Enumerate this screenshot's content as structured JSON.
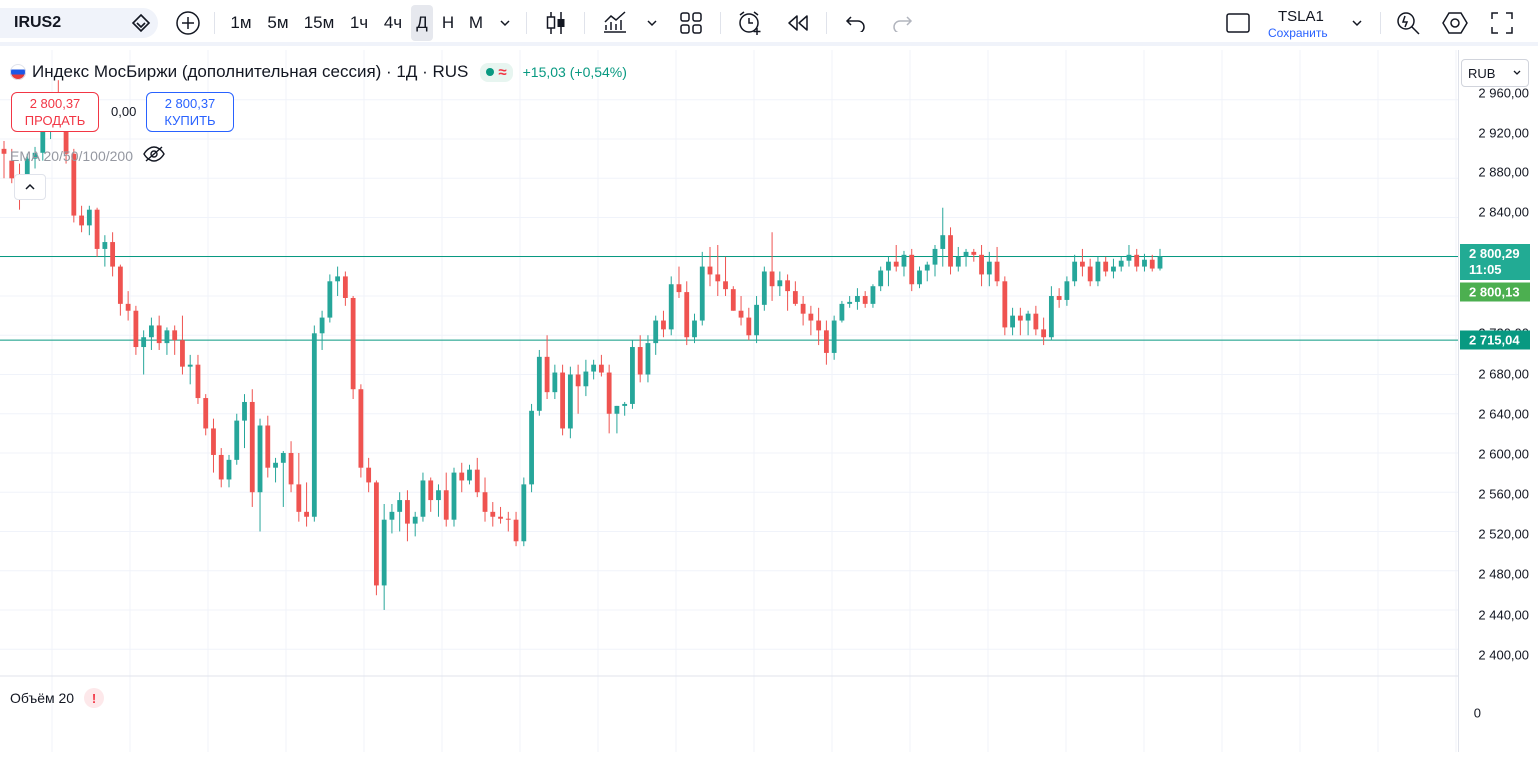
{
  "toolbar": {
    "symbol": "IRUS2",
    "timeframes": [
      "1м",
      "5м",
      "15м",
      "1ч",
      "4ч",
      "Д",
      "Н",
      "М"
    ],
    "active_timeframe_index": 5,
    "account_name": "TSLA1",
    "save_label": "Сохранить",
    "icons": [
      "plus-icon",
      "candles-icon",
      "indicators-icon",
      "templates-icon",
      "alert-icon",
      "replay-icon",
      "undo-icon",
      "redo-icon",
      "layout-icon",
      "quick-search-icon",
      "settings-icon",
      "fullscreen-icon"
    ]
  },
  "legend": {
    "title": "Индекс МосБиржи (дополнительная сессия) · 1Д · RUS",
    "status_symbol": "≈",
    "change": "+15,03 (+0,54%)",
    "sell_price": "2 800,37",
    "sell_label": "ПРОДАТЬ",
    "spread": "0,00",
    "buy_price": "2 800,37",
    "buy_label": "КУПИТЬ",
    "ema": "EMA 20/50/100/200",
    "volume": "Объём 20",
    "volume_warning": "!"
  },
  "price_axis": {
    "currency": "RUB",
    "labels": [
      "2 960,00",
      "2 920,00",
      "2 880,00",
      "2 840,00",
      "2 720,00",
      "2 680,00",
      "2 640,00",
      "2 600,00",
      "2 560,00",
      "2 520,00",
      "2 480,00",
      "2 440,00",
      "2 400,00"
    ],
    "volume_zero": "0",
    "last_price": "2 800,29",
    "countdown": "11:05",
    "prev_close": "2 800,13",
    "level_price": "2 715,04"
  },
  "colors": {
    "up": "#26a69a",
    "down": "#ef5350",
    "grid": "#f0f3fa",
    "level": "#089981",
    "last_tag": "#22ab94",
    "prev_tag": "#4caf50"
  },
  "chart_data": {
    "type": "candlestick",
    "timeframe": "1Д",
    "y_range": [
      2390,
      2970
    ],
    "horizontal_lines": [
      2800.29,
      2715.04
    ],
    "candles": [
      [
        2910,
        2918,
        2880,
        2905
      ],
      [
        2898,
        2910,
        2875,
        2880
      ],
      [
        2880,
        2895,
        2848,
        2872
      ],
      [
        2872,
        2905,
        2868,
        2900
      ],
      [
        2900,
        2912,
        2890,
        2906
      ],
      [
        2906,
        2940,
        2898,
        2930
      ],
      [
        2930,
        2960,
        2920,
        2950
      ],
      [
        2950,
        2980,
        2930,
        2945
      ],
      [
        2945,
        2962,
        2895,
        2905
      ],
      [
        2905,
        2910,
        2835,
        2842
      ],
      [
        2842,
        2852,
        2825,
        2832
      ],
      [
        2832,
        2852,
        2822,
        2848
      ],
      [
        2848,
        2850,
        2800,
        2808
      ],
      [
        2808,
        2822,
        2790,
        2815
      ],
      [
        2815,
        2825,
        2780,
        2790
      ],
      [
        2790,
        2792,
        2740,
        2752
      ],
      [
        2752,
        2765,
        2735,
        2745
      ],
      [
        2745,
        2750,
        2700,
        2708
      ],
      [
        2708,
        2725,
        2680,
        2718
      ],
      [
        2718,
        2738,
        2705,
        2730
      ],
      [
        2730,
        2740,
        2705,
        2712
      ],
      [
        2712,
        2728,
        2700,
        2725
      ],
      [
        2725,
        2730,
        2700,
        2715
      ],
      [
        2715,
        2740,
        2680,
        2688
      ],
      [
        2688,
        2700,
        2670,
        2690
      ],
      [
        2690,
        2700,
        2650,
        2656
      ],
      [
        2656,
        2660,
        2618,
        2625
      ],
      [
        2625,
        2635,
        2580,
        2598
      ],
      [
        2598,
        2605,
        2565,
        2573
      ],
      [
        2573,
        2598,
        2565,
        2593
      ],
      [
        2593,
        2640,
        2588,
        2633
      ],
      [
        2633,
        2660,
        2605,
        2652
      ],
      [
        2652,
        2665,
        2545,
        2560
      ],
      [
        2560,
        2635,
        2520,
        2628
      ],
      [
        2628,
        2638,
        2575,
        2585
      ],
      [
        2585,
        2595,
        2570,
        2590
      ],
      [
        2590,
        2602,
        2545,
        2600
      ],
      [
        2600,
        2612,
        2560,
        2568
      ],
      [
        2568,
        2600,
        2530,
        2540
      ],
      [
        2540,
        2570,
        2525,
        2535
      ],
      [
        2535,
        2730,
        2530,
        2722
      ],
      [
        2722,
        2745,
        2705,
        2738
      ],
      [
        2738,
        2782,
        2733,
        2775
      ],
      [
        2775,
        2790,
        2760,
        2780
      ],
      [
        2780,
        2785,
        2750,
        2758
      ],
      [
        2758,
        2760,
        2655,
        2665
      ],
      [
        2665,
        2670,
        2575,
        2585
      ],
      [
        2585,
        2595,
        2560,
        2570
      ],
      [
        2570,
        2572,
        2455,
        2465
      ],
      [
        2465,
        2548,
        2440,
        2532
      ],
      [
        2532,
        2548,
        2518,
        2540
      ],
      [
        2540,
        2560,
        2520,
        2552
      ],
      [
        2552,
        2562,
        2510,
        2528
      ],
      [
        2528,
        2540,
        2515,
        2535
      ],
      [
        2535,
        2580,
        2530,
        2572
      ],
      [
        2572,
        2575,
        2540,
        2552
      ],
      [
        2552,
        2568,
        2535,
        2562
      ],
      [
        2562,
        2580,
        2525,
        2532
      ],
      [
        2532,
        2585,
        2525,
        2580
      ],
      [
        2580,
        2590,
        2560,
        2572
      ],
      [
        2572,
        2588,
        2568,
        2583
      ],
      [
        2583,
        2595,
        2555,
        2560
      ],
      [
        2560,
        2575,
        2530,
        2540
      ],
      [
        2540,
        2550,
        2525,
        2535
      ],
      [
        2535,
        2545,
        2528,
        2533
      ],
      [
        2533,
        2540,
        2520,
        2532
      ],
      [
        2532,
        2540,
        2505,
        2510
      ],
      [
        2510,
        2575,
        2505,
        2568
      ],
      [
        2568,
        2650,
        2560,
        2643
      ],
      [
        2643,
        2705,
        2638,
        2698
      ],
      [
        2698,
        2720,
        2655,
        2662
      ],
      [
        2662,
        2690,
        2655,
        2682
      ],
      [
        2682,
        2690,
        2618,
        2625
      ],
      [
        2625,
        2688,
        2615,
        2680
      ],
      [
        2680,
        2690,
        2640,
        2668
      ],
      [
        2668,
        2695,
        2658,
        2683
      ],
      [
        2683,
        2695,
        2675,
        2690
      ],
      [
        2690,
        2700,
        2678,
        2682
      ],
      [
        2682,
        2690,
        2620,
        2640
      ],
      [
        2640,
        2648,
        2620,
        2648
      ],
      [
        2648,
        2652,
        2638,
        2650
      ],
      [
        2650,
        2715,
        2645,
        2708
      ],
      [
        2708,
        2720,
        2672,
        2680
      ],
      [
        2680,
        2720,
        2672,
        2712
      ],
      [
        2712,
        2740,
        2700,
        2735
      ],
      [
        2735,
        2745,
        2718,
        2726
      ],
      [
        2726,
        2780,
        2720,
        2772
      ],
      [
        2772,
        2790,
        2758,
        2764
      ],
      [
        2764,
        2775,
        2710,
        2718
      ],
      [
        2718,
        2742,
        2712,
        2735
      ],
      [
        2735,
        2805,
        2730,
        2790
      ],
      [
        2790,
        2810,
        2770,
        2782
      ],
      [
        2782,
        2812,
        2760,
        2775
      ],
      [
        2775,
        2800,
        2760,
        2767
      ],
      [
        2767,
        2770,
        2745,
        2745
      ],
      [
        2745,
        2760,
        2730,
        2738
      ],
      [
        2738,
        2748,
        2715,
        2720
      ],
      [
        2720,
        2760,
        2712,
        2751
      ],
      [
        2751,
        2790,
        2745,
        2785
      ],
      [
        2785,
        2825,
        2755,
        2770
      ],
      [
        2770,
        2785,
        2760,
        2776
      ],
      [
        2776,
        2782,
        2745,
        2765
      ],
      [
        2765,
        2775,
        2750,
        2752
      ],
      [
        2752,
        2760,
        2730,
        2742
      ],
      [
        2742,
        2750,
        2720,
        2735
      ],
      [
        2735,
        2748,
        2710,
        2725
      ],
      [
        2725,
        2735,
        2690,
        2702
      ],
      [
        2702,
        2740,
        2695,
        2735
      ],
      [
        2735,
        2755,
        2733,
        2752
      ],
      [
        2752,
        2760,
        2748,
        2754
      ],
      [
        2754,
        2768,
        2746,
        2760
      ],
      [
        2760,
        2765,
        2748,
        2752
      ],
      [
        2752,
        2772,
        2748,
        2770
      ],
      [
        2770,
        2790,
        2765,
        2786
      ],
      [
        2786,
        2800,
        2770,
        2795
      ],
      [
        2795,
        2812,
        2785,
        2790
      ],
      [
        2790,
        2806,
        2780,
        2802
      ],
      [
        2802,
        2808,
        2765,
        2772
      ],
      [
        2772,
        2790,
        2768,
        2786
      ],
      [
        2786,
        2795,
        2775,
        2792
      ],
      [
        2792,
        2812,
        2780,
        2808
      ],
      [
        2808,
        2850,
        2790,
        2822
      ],
      [
        2822,
        2830,
        2782,
        2790
      ],
      [
        2790,
        2810,
        2785,
        2800
      ],
      [
        2800,
        2808,
        2790,
        2805
      ],
      [
        2805,
        2808,
        2795,
        2802
      ],
      [
        2802,
        2812,
        2770,
        2782
      ],
      [
        2782,
        2805,
        2770,
        2795
      ],
      [
        2795,
        2810,
        2770,
        2775
      ],
      [
        2775,
        2780,
        2720,
        2728
      ],
      [
        2728,
        2748,
        2720,
        2740
      ],
      [
        2740,
        2748,
        2720,
        2735
      ],
      [
        2735,
        2745,
        2720,
        2742
      ],
      [
        2742,
        2750,
        2720,
        2726
      ],
      [
        2726,
        2738,
        2710,
        2718
      ],
      [
        2718,
        2770,
        2715,
        2760
      ],
      [
        2760,
        2768,
        2748,
        2756
      ],
      [
        2756,
        2780,
        2750,
        2775
      ],
      [
        2775,
        2802,
        2770,
        2795
      ],
      [
        2795,
        2808,
        2780,
        2790
      ],
      [
        2790,
        2798,
        2770,
        2775
      ],
      [
        2775,
        2800,
        2770,
        2795
      ],
      [
        2795,
        2800,
        2780,
        2785
      ],
      [
        2785,
        2798,
        2778,
        2790
      ],
      [
        2790,
        2800,
        2785,
        2796
      ],
      [
        2796,
        2812,
        2790,
        2802
      ],
      [
        2802,
        2808,
        2785,
        2790
      ],
      [
        2790,
        2803,
        2785,
        2797
      ],
      [
        2797,
        2802,
        2785,
        2788
      ],
      [
        2788,
        2808,
        2786,
        2800.29
      ]
    ]
  }
}
